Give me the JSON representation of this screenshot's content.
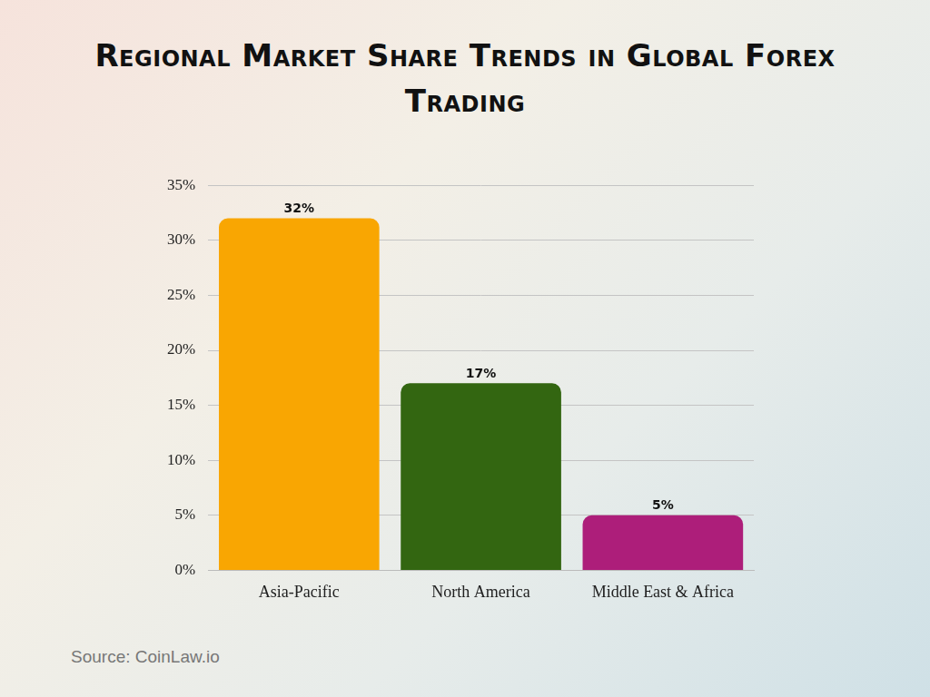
{
  "chart_data": {
    "type": "bar",
    "title": "Regional Market Share Trends in Global Forex Trading",
    "annotations": [
      "Source: CoinLaw.io"
    ],
    "categories": [
      "Asia-Pacific",
      "North America",
      "Middle East & Africa"
    ],
    "values": [
      32,
      17,
      5
    ],
    "value_labels": [
      "32%",
      "17%",
      "5%"
    ],
    "data_labels": true,
    "colors": [
      "#f9a602",
      "#336611",
      "#ad1e7a"
    ],
    "ylim": [
      0,
      35
    ],
    "yticks": [
      {
        "value": 0,
        "label": "0%"
      },
      {
        "value": 5,
        "label": "5%"
      },
      {
        "value": 10,
        "label": "10%"
      },
      {
        "value": 15,
        "label": "15%"
      },
      {
        "value": 20,
        "label": "20%"
      },
      {
        "value": 25,
        "label": "25%"
      },
      {
        "value": 30,
        "label": "30%"
      },
      {
        "value": 35,
        "label": "35%"
      }
    ],
    "grid": true
  }
}
